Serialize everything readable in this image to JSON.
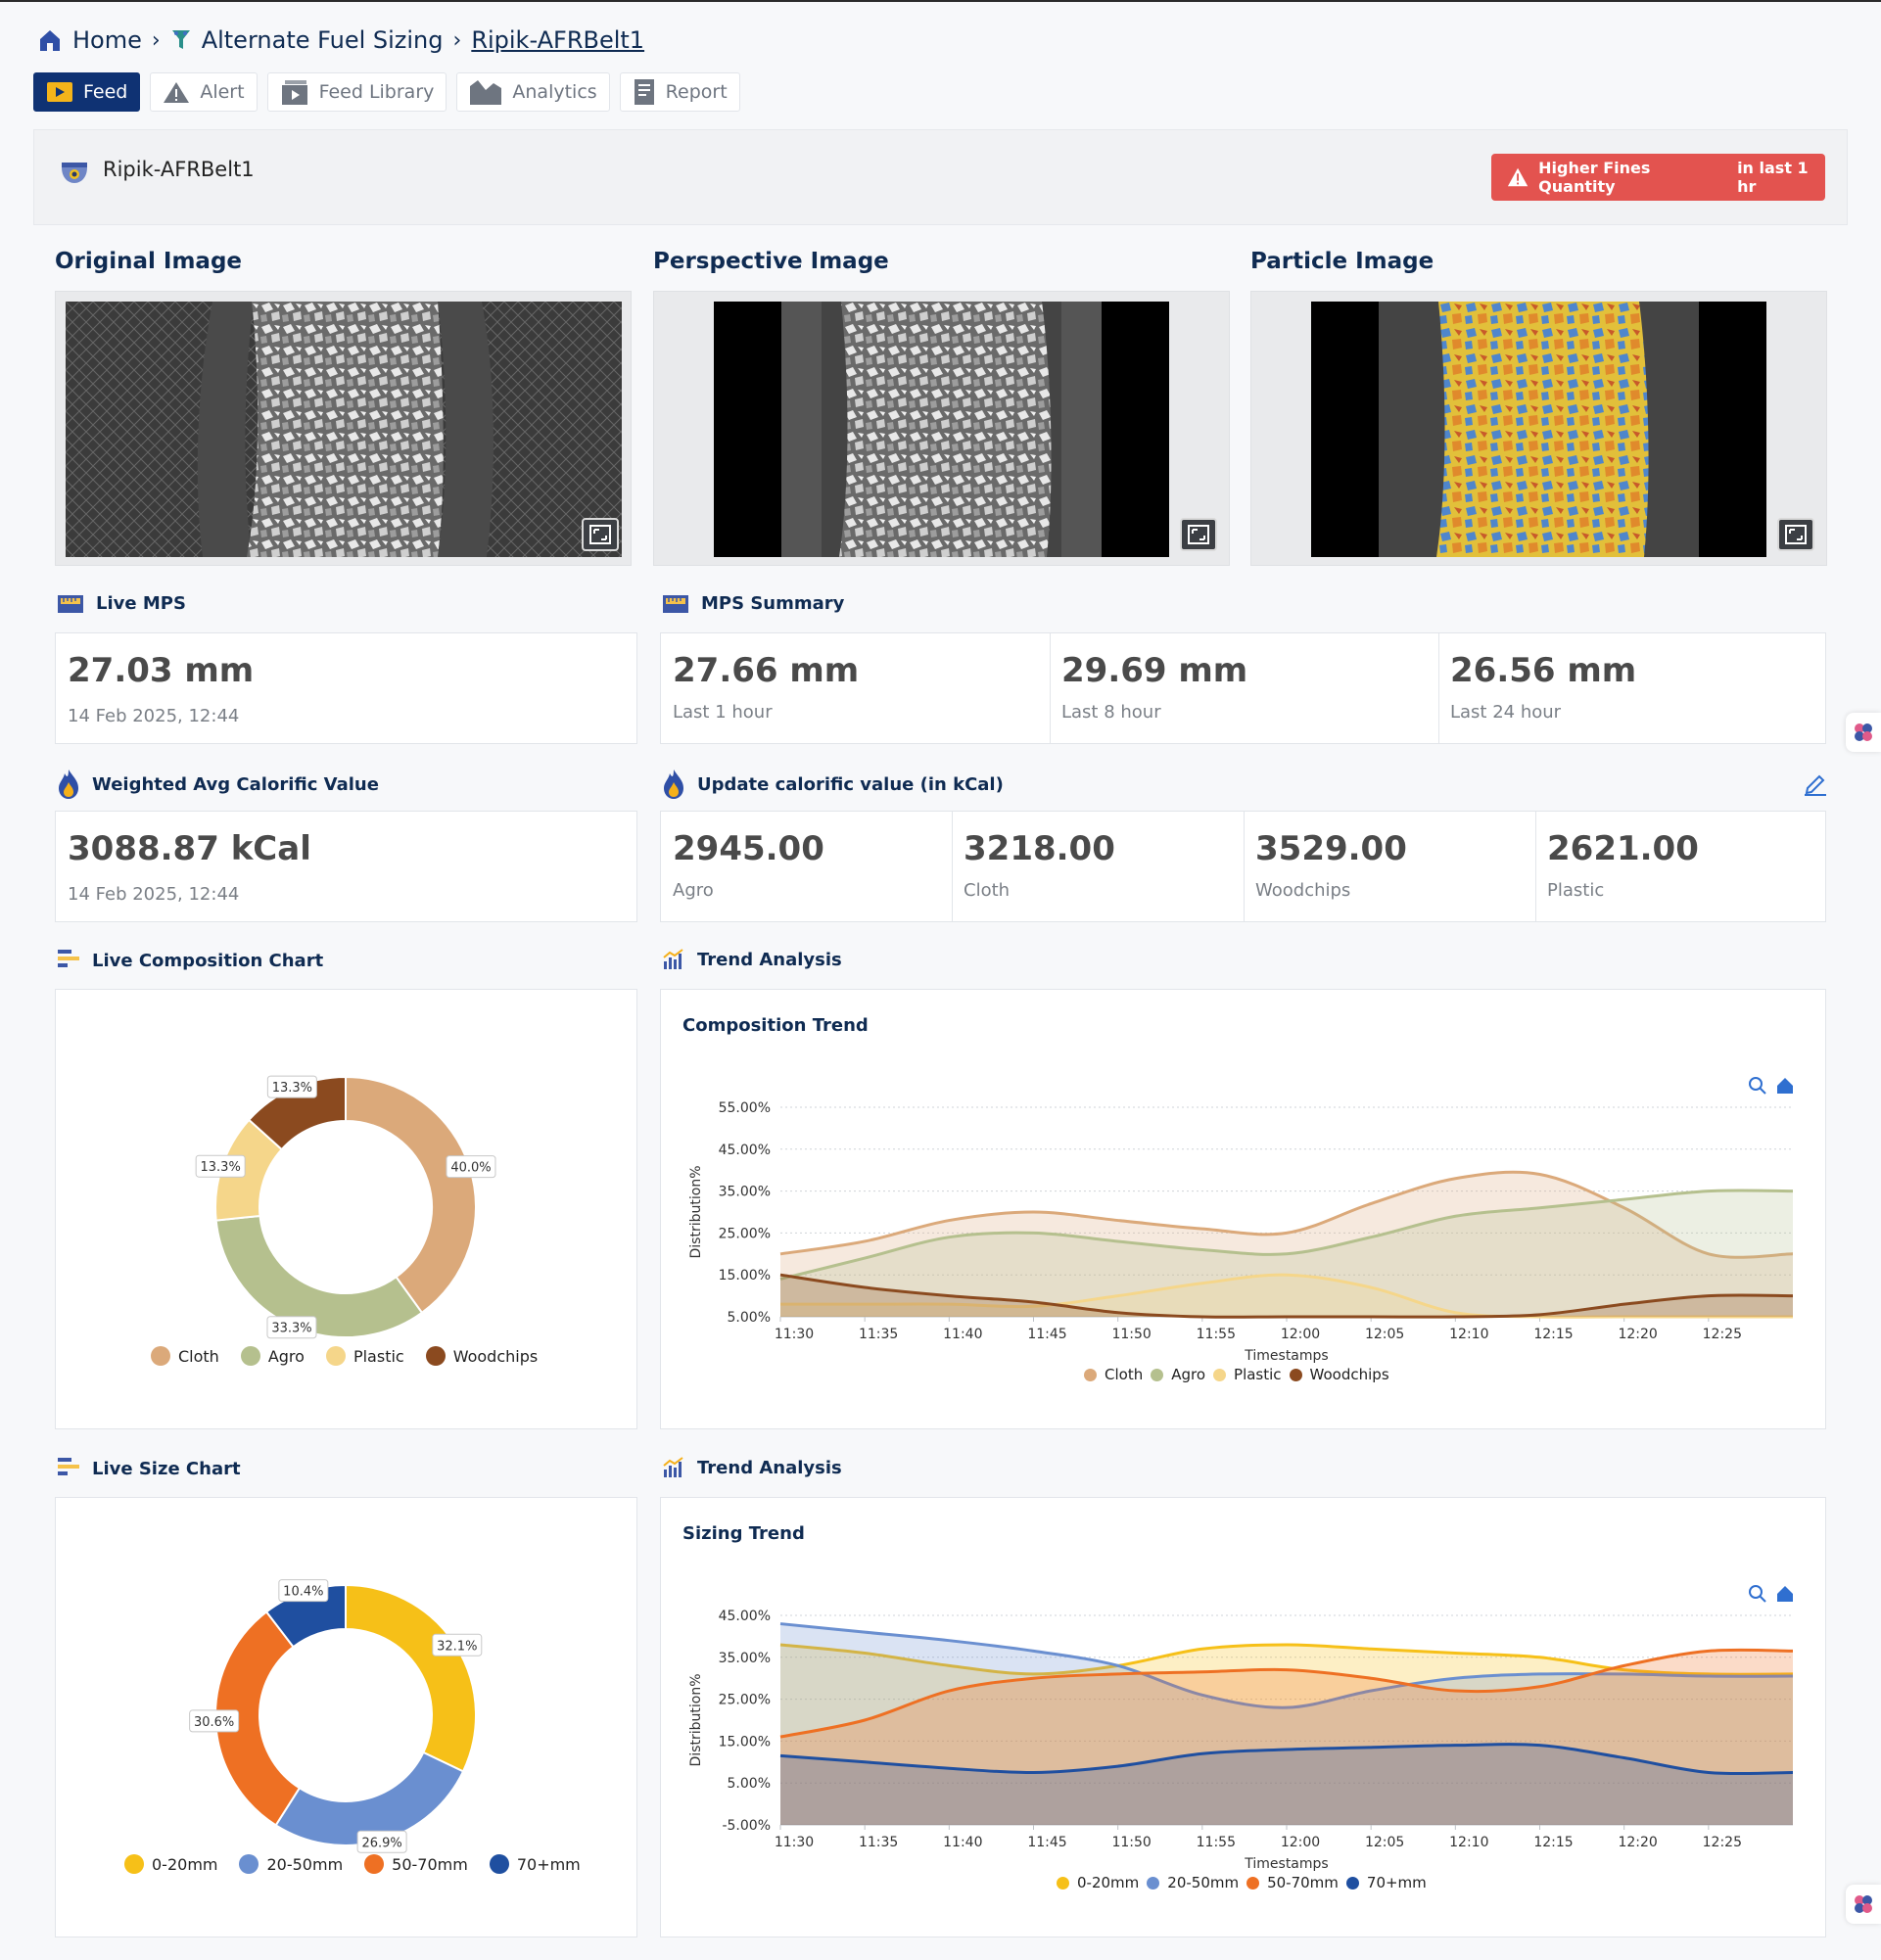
{
  "breadcrumb": {
    "home": "Home",
    "section": "Alternate Fuel Sizing",
    "current": "Ripik-AFRBelt1"
  },
  "tabs": [
    {
      "label": "Feed",
      "active": true,
      "icon": "play-icon"
    },
    {
      "label": "Alert",
      "icon": "warning-icon"
    },
    {
      "label": "Feed Library",
      "icon": "video-library-icon"
    },
    {
      "label": "Analytics",
      "icon": "area-chart-icon"
    },
    {
      "label": "Report",
      "icon": "document-icon"
    }
  ],
  "device": {
    "name": "Ripik-AFRBelt1"
  },
  "alert": {
    "text": "Higher Fines Quantity",
    "since": "in last 1 hr",
    "color": "#e3534f"
  },
  "images": {
    "original_title": "Original Image",
    "perspective_title": "Perspective Image",
    "particle_title": "Particle Image"
  },
  "live_mps": {
    "title": "Live MPS",
    "value": "27.03 mm",
    "timestamp": "14 Feb 2025, 12:44"
  },
  "mps_summary": {
    "title": "MPS Summary",
    "items": [
      {
        "value": "27.66 mm",
        "label": "Last 1 hour"
      },
      {
        "value": "29.69 mm",
        "label": "Last 8 hour"
      },
      {
        "value": "26.56 mm",
        "label": "Last 24 hour"
      }
    ]
  },
  "calorific": {
    "title": "Weighted Avg Calorific Value",
    "value": "3088.87 kCal",
    "timestamp": "14 Feb 2025, 12:44"
  },
  "update_calorific": {
    "title": "Update calorific value (in kCal)",
    "items": [
      {
        "value": "2945.00",
        "label": "Agro"
      },
      {
        "value": "3218.00",
        "label": "Cloth"
      },
      {
        "value": "3529.00",
        "label": "Woodchips"
      },
      {
        "value": "2621.00",
        "label": "Plastic"
      }
    ]
  },
  "composition_section": {
    "title": "Live Composition Chart"
  },
  "size_section": {
    "title": "Live Size Chart"
  },
  "trend_section": {
    "title": "Trend Analysis",
    "title2": "Trend Analysis"
  },
  "colors": {
    "cloth": "#dba97a",
    "agro": "#b5c08e",
    "plastic": "#f5d68a",
    "woodchips": "#8b4a1f",
    "s0_20": "#f6c018",
    "s20_50": "#6a8fd0",
    "s50_70": "#ee7023",
    "s70": "#1f4fa0"
  },
  "chart_data": [
    {
      "type": "pie",
      "title": "",
      "labels": [
        "Cloth",
        "Agro",
        "Plastic",
        "Woodchips"
      ],
      "values": [
        40.0,
        33.3,
        13.3,
        13.3
      ],
      "data_labels": [
        "40.0%",
        "33.3%",
        "13.3%",
        "13.3%"
      ],
      "colors": [
        "#dba97a",
        "#b5c08e",
        "#f5d68a",
        "#8b4a1f"
      ],
      "donut": true,
      "legend": "bottom"
    },
    {
      "type": "area",
      "title": "Composition Trend",
      "xlabel": "Timestamps",
      "ylabel": "Distribution%",
      "x": [
        "11:30",
        "11:35",
        "11:40",
        "11:45",
        "11:50",
        "11:55",
        "12:00",
        "12:05",
        "12:10",
        "12:15",
        "12:20",
        "12:25"
      ],
      "x_numeric": [
        0,
        5,
        10,
        15,
        20,
        25,
        30,
        35,
        40,
        45,
        50,
        55
      ],
      "x_max": 60,
      "y_ticks": [
        "5.00%",
        "15.00%",
        "25.00%",
        "35.00%",
        "45.00%",
        "55.00%"
      ],
      "ylim": [
        5,
        55
      ],
      "grid": true,
      "legend": "bottom",
      "series": [
        {
          "name": "Cloth",
          "color": "#dba97a",
          "values": [
            20,
            23,
            28,
            30,
            28,
            26,
            25,
            32,
            38,
            39,
            31,
            20
          ]
        },
        {
          "name": "Agro",
          "color": "#b5c08e",
          "values": [
            14,
            19,
            24,
            25,
            23,
            21,
            20,
            24,
            29,
            31,
            33,
            35
          ]
        },
        {
          "name": "Plastic",
          "color": "#f5d68a",
          "values": [
            8,
            8,
            8,
            7.5,
            10,
            13,
            15,
            12,
            6,
            5,
            5,
            5
          ]
        },
        {
          "name": "Woodchips",
          "color": "#8b4a1f",
          "values": [
            15,
            12,
            10,
            8.5,
            6,
            5,
            5,
            5,
            5,
            5.5,
            8,
            10
          ]
        }
      ]
    },
    {
      "type": "pie",
      "title": "",
      "labels": [
        "0-20mm",
        "20-50mm",
        "50-70mm",
        "70+mm"
      ],
      "values": [
        32.1,
        26.9,
        30.6,
        10.4
      ],
      "data_labels": [
        "32.1%",
        "26.9%",
        "30.6%",
        "10.4%"
      ],
      "colors": [
        "#f6c018",
        "#6a8fd0",
        "#ee7023",
        "#1f4fa0"
      ],
      "donut": true,
      "legend": "bottom"
    },
    {
      "type": "area",
      "title": "Sizing Trend",
      "xlabel": "Timestamps",
      "ylabel": "Distribution%",
      "x": [
        "11:30",
        "11:35",
        "11:40",
        "11:45",
        "11:50",
        "11:55",
        "12:00",
        "12:05",
        "12:10",
        "12:15",
        "12:20",
        "12:25"
      ],
      "x_numeric": [
        0,
        5,
        10,
        15,
        20,
        25,
        30,
        35,
        40,
        45,
        50,
        55
      ],
      "x_max": 60,
      "y_ticks": [
        "-5.00%",
        "5.00%",
        "15.00%",
        "25.00%",
        "35.00%",
        "45.00%"
      ],
      "ylim": [
        -5,
        45
      ],
      "grid": true,
      "legend": "bottom",
      "series": [
        {
          "name": "0-20mm",
          "color": "#f6c018",
          "values": [
            38,
            36,
            33,
            31,
            33,
            37,
            38,
            37,
            36,
            35,
            32,
            31
          ]
        },
        {
          "name": "20-50mm",
          "color": "#6a8fd0",
          "values": [
            43,
            41,
            39,
            36.5,
            33,
            26,
            23,
            27,
            30,
            31,
            31,
            30.5
          ]
        },
        {
          "name": "50-70mm",
          "color": "#ee7023",
          "values": [
            16,
            20,
            27,
            30,
            31,
            31.5,
            32,
            30,
            27,
            28,
            33,
            36.5
          ]
        },
        {
          "name": "70+mm",
          "color": "#1f4fa0",
          "values": [
            11.5,
            10,
            8.5,
            7.5,
            9,
            12,
            13,
            13.5,
            14,
            14,
            11,
            7.5
          ]
        }
      ]
    }
  ]
}
